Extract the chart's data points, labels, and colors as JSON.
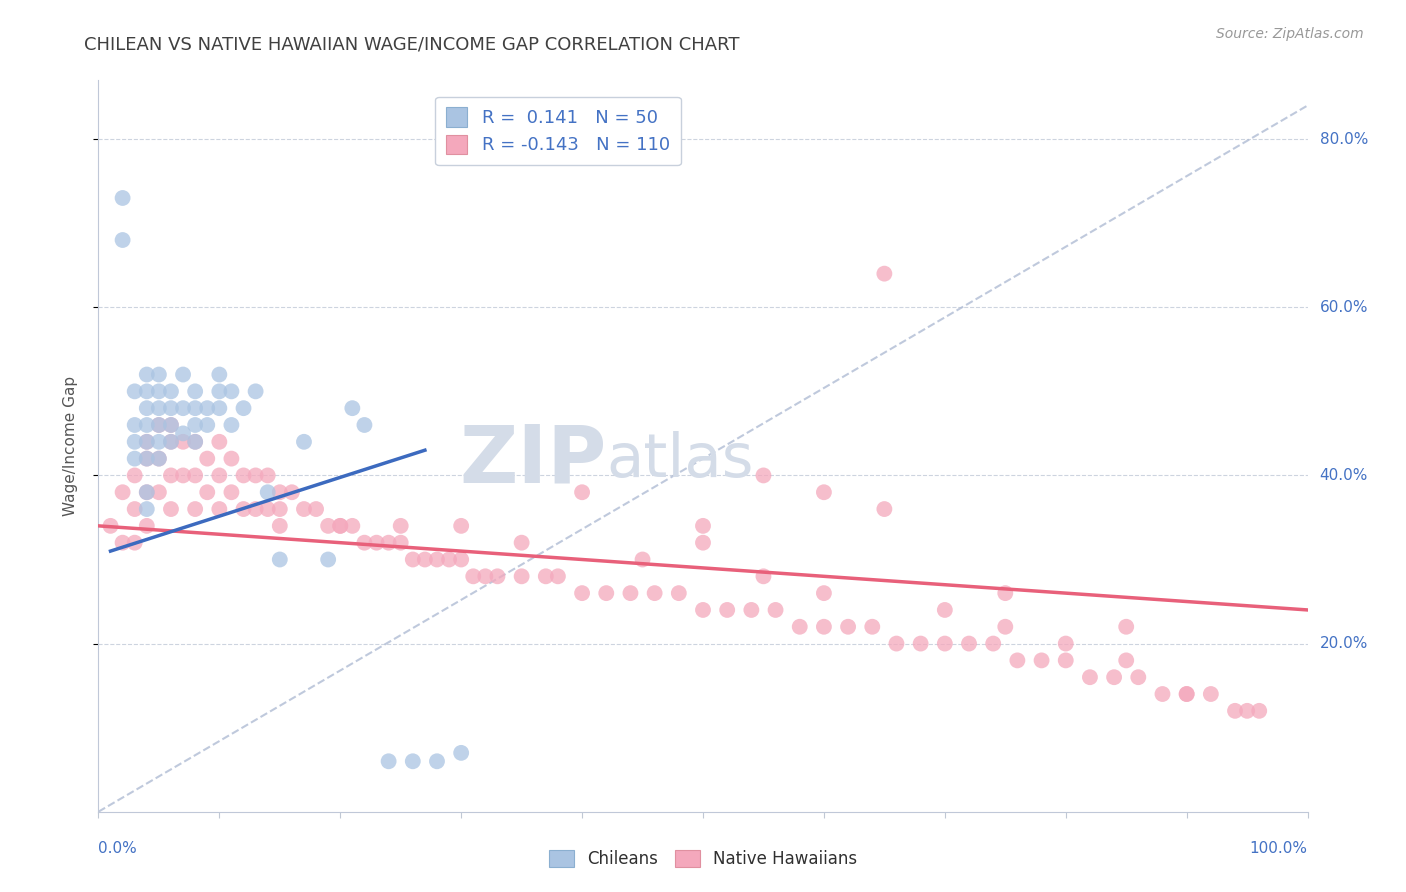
{
  "title": "CHILEAN VS NATIVE HAWAIIAN WAGE/INCOME GAP CORRELATION CHART",
  "source": "Source: ZipAtlas.com",
  "ylabel": "Wage/Income Gap",
  "xlim": [
    0.0,
    1.0
  ],
  "ylim": [
    0.0,
    0.87
  ],
  "yticks": [
    0.2,
    0.4,
    0.6,
    0.8
  ],
  "ytick_labels": [
    "20.0%",
    "40.0%",
    "60.0%",
    "80.0%"
  ],
  "chilean_color": "#aac4e2",
  "native_hawaiian_color": "#f4a8bc",
  "trend_chilean_color": "#3c6abf",
  "trend_native_hawaiian_color": "#e8607a",
  "dashed_line_color": "#b0bcd4",
  "background_color": "#ffffff",
  "grid_color": "#c8d0dc",
  "watermark_zip": "ZIP",
  "watermark_atlas": "atlas",
  "watermark_color": "#d4dce8",
  "chilean_x": [
    0.02,
    0.02,
    0.03,
    0.03,
    0.03,
    0.03,
    0.04,
    0.04,
    0.04,
    0.04,
    0.04,
    0.04,
    0.04,
    0.04,
    0.05,
    0.05,
    0.05,
    0.05,
    0.05,
    0.05,
    0.06,
    0.06,
    0.06,
    0.06,
    0.07,
    0.07,
    0.07,
    0.08,
    0.08,
    0.08,
    0.08,
    0.09,
    0.09,
    0.1,
    0.1,
    0.1,
    0.11,
    0.11,
    0.12,
    0.13,
    0.14,
    0.15,
    0.17,
    0.19,
    0.21,
    0.22,
    0.24,
    0.26,
    0.28,
    0.3
  ],
  "chilean_y": [
    0.73,
    0.68,
    0.5,
    0.46,
    0.44,
    0.42,
    0.52,
    0.5,
    0.48,
    0.46,
    0.44,
    0.42,
    0.38,
    0.36,
    0.52,
    0.5,
    0.48,
    0.46,
    0.44,
    0.42,
    0.5,
    0.48,
    0.46,
    0.44,
    0.52,
    0.48,
    0.45,
    0.5,
    0.48,
    0.46,
    0.44,
    0.48,
    0.46,
    0.52,
    0.5,
    0.48,
    0.5,
    0.46,
    0.48,
    0.5,
    0.38,
    0.3,
    0.44,
    0.3,
    0.48,
    0.46,
    0.06,
    0.06,
    0.06,
    0.07
  ],
  "native_hawaiian_x": [
    0.01,
    0.02,
    0.02,
    0.03,
    0.03,
    0.03,
    0.04,
    0.04,
    0.04,
    0.04,
    0.05,
    0.05,
    0.05,
    0.06,
    0.06,
    0.06,
    0.06,
    0.07,
    0.07,
    0.08,
    0.08,
    0.08,
    0.09,
    0.09,
    0.1,
    0.1,
    0.1,
    0.11,
    0.11,
    0.12,
    0.12,
    0.13,
    0.13,
    0.14,
    0.14,
    0.15,
    0.15,
    0.16,
    0.17,
    0.18,
    0.19,
    0.2,
    0.21,
    0.22,
    0.23,
    0.24,
    0.25,
    0.26,
    0.27,
    0.28,
    0.29,
    0.3,
    0.31,
    0.32,
    0.33,
    0.35,
    0.37,
    0.38,
    0.4,
    0.42,
    0.44,
    0.46,
    0.48,
    0.5,
    0.52,
    0.54,
    0.56,
    0.58,
    0.6,
    0.62,
    0.64,
    0.66,
    0.68,
    0.7,
    0.72,
    0.74,
    0.76,
    0.78,
    0.8,
    0.82,
    0.84,
    0.86,
    0.88,
    0.9,
    0.92,
    0.94,
    0.96,
    0.4,
    0.45,
    0.55,
    0.6,
    0.65,
    0.75,
    0.85,
    0.9,
    0.25,
    0.35,
    0.15,
    0.2,
    0.5,
    0.3,
    0.5,
    0.55,
    0.6,
    0.65,
    0.7,
    0.75,
    0.8,
    0.85,
    0.95
  ],
  "native_hawaiian_y": [
    0.34,
    0.38,
    0.32,
    0.4,
    0.36,
    0.32,
    0.44,
    0.42,
    0.38,
    0.34,
    0.46,
    0.42,
    0.38,
    0.46,
    0.44,
    0.4,
    0.36,
    0.44,
    0.4,
    0.44,
    0.4,
    0.36,
    0.42,
    0.38,
    0.44,
    0.4,
    0.36,
    0.42,
    0.38,
    0.4,
    0.36,
    0.4,
    0.36,
    0.4,
    0.36,
    0.38,
    0.34,
    0.38,
    0.36,
    0.36,
    0.34,
    0.34,
    0.34,
    0.32,
    0.32,
    0.32,
    0.32,
    0.3,
    0.3,
    0.3,
    0.3,
    0.3,
    0.28,
    0.28,
    0.28,
    0.28,
    0.28,
    0.28,
    0.26,
    0.26,
    0.26,
    0.26,
    0.26,
    0.24,
    0.24,
    0.24,
    0.24,
    0.22,
    0.22,
    0.22,
    0.22,
    0.2,
    0.2,
    0.2,
    0.2,
    0.2,
    0.18,
    0.18,
    0.18,
    0.16,
    0.16,
    0.16,
    0.14,
    0.14,
    0.14,
    0.12,
    0.12,
    0.38,
    0.3,
    0.4,
    0.38,
    0.36,
    0.26,
    0.22,
    0.14,
    0.34,
    0.32,
    0.36,
    0.34,
    0.34,
    0.34,
    0.32,
    0.28,
    0.26,
    0.64,
    0.24,
    0.22,
    0.2,
    0.18,
    0.12
  ],
  "chilean_trend_x": [
    0.01,
    0.27
  ],
  "chilean_trend_y": [
    0.31,
    0.43
  ],
  "native_hawaiian_trend_x": [
    0.0,
    1.0
  ],
  "native_hawaiian_trend_y": [
    0.34,
    0.24
  ],
  "dashed_line_x": [
    0.0,
    1.0
  ],
  "dashed_line_y": [
    0.0,
    0.84
  ]
}
